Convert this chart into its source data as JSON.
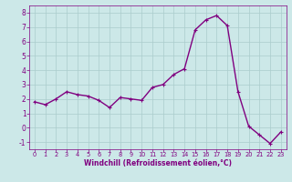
{
  "x": [
    0,
    1,
    2,
    3,
    4,
    5,
    6,
    7,
    8,
    9,
    10,
    11,
    12,
    13,
    14,
    15,
    16,
    17,
    18,
    19,
    20,
    21,
    22,
    23
  ],
  "y": [
    1.8,
    1.6,
    2.0,
    2.5,
    2.3,
    2.2,
    1.9,
    1.4,
    2.1,
    2.0,
    1.9,
    2.8,
    3.0,
    3.7,
    4.1,
    6.8,
    7.5,
    7.8,
    7.1,
    2.5,
    0.1,
    -0.5,
    -1.1,
    -0.3
  ],
  "line_color": "#800080",
  "marker": "+",
  "marker_size": 3,
  "bg_color": "#cce8e8",
  "grid_color": "#aacccc",
  "xlabel": "Windchill (Refroidissement éolien,°C)",
  "xlabel_color": "#800080",
  "tick_color": "#800080",
  "ylim": [
    -1.5,
    8.5
  ],
  "xlim": [
    -0.5,
    23.5
  ],
  "yticks": [
    -1,
    0,
    1,
    2,
    3,
    4,
    5,
    6,
    7,
    8
  ],
  "xticks": [
    0,
    1,
    2,
    3,
    4,
    5,
    6,
    7,
    8,
    9,
    10,
    11,
    12,
    13,
    14,
    15,
    16,
    17,
    18,
    19,
    20,
    21,
    22,
    23
  ],
  "linewidth": 1.0,
  "xlabel_fontsize": 5.5,
  "tick_fontsize_x": 4.8,
  "tick_fontsize_y": 5.5
}
